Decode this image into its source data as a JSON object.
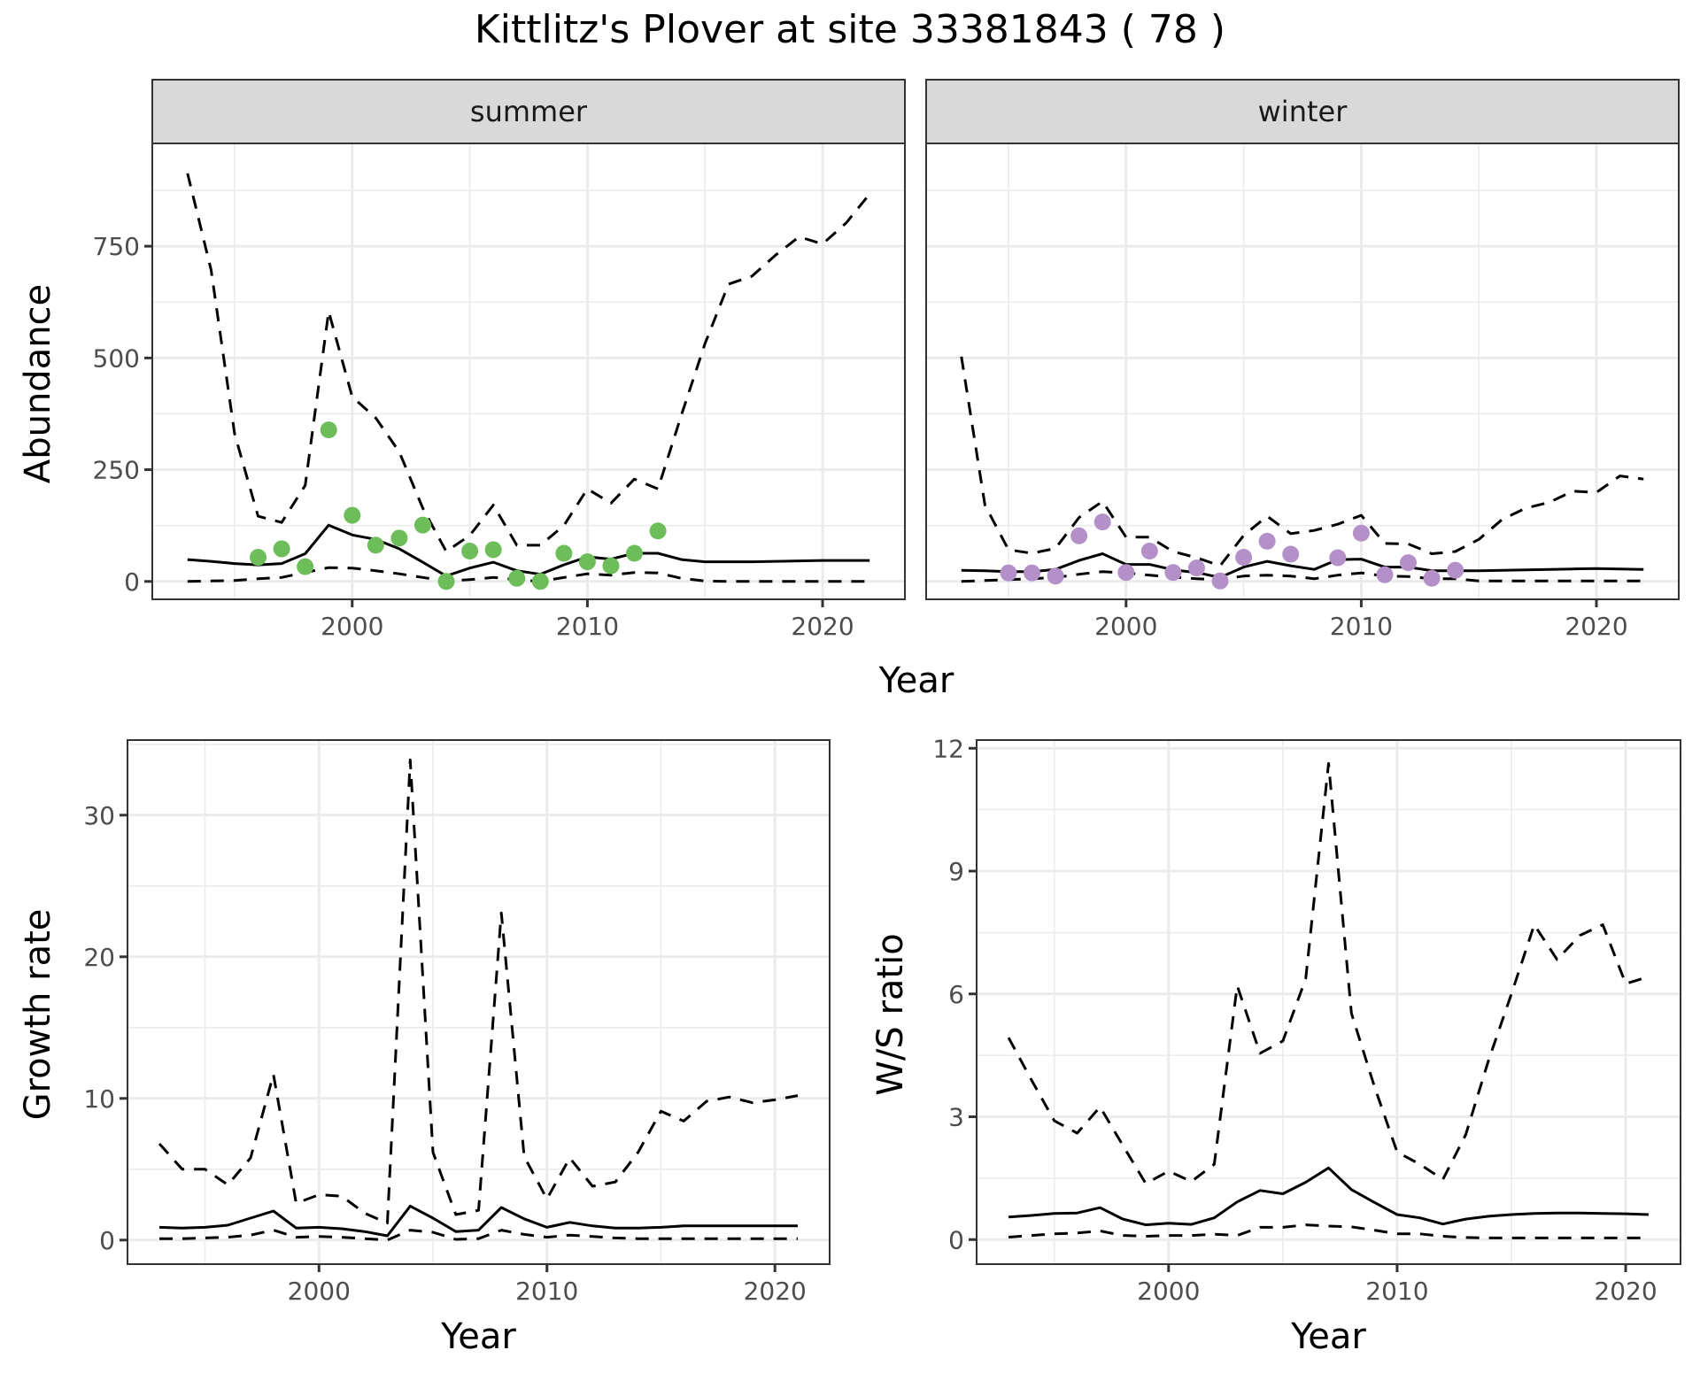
{
  "figure": {
    "title": "Kittlitz's Plover at site 33381843 ( 78 )"
  },
  "colors": {
    "summer_points": "#6dbe5b",
    "winter_points": "#b490c8",
    "line": "#000000",
    "strip_bg": "#d9d9d9",
    "grid": "#ebebeb",
    "panel_border": "#333333"
  },
  "chart_data": [
    {
      "type": "line",
      "panel": "summer",
      "strip_label": "summer",
      "xlabel": "Year",
      "ylabel": "Abundance",
      "xlim": [
        1991.5,
        2023.5
      ],
      "ylim": [
        -40,
        980
      ],
      "xticks": [
        2000,
        2010,
        2020
      ],
      "yticks": [
        0,
        250,
        500,
        750
      ],
      "grid": true,
      "observed_points": {
        "x": [
          1996,
          1997,
          1998,
          1999,
          2000,
          2001,
          2002,
          2003,
          2004,
          2005,
          2006,
          2007,
          2008,
          2009,
          2010,
          2011,
          2012,
          2013
        ],
        "y": [
          54,
          73,
          33,
          339,
          148,
          81,
          97,
          126,
          0,
          68,
          71,
          7,
          0,
          63,
          44,
          35,
          63,
          113
        ]
      },
      "series": [
        {
          "name": "median",
          "style": "solid",
          "x": [
            1993,
            1994,
            1995,
            1996,
            1997,
            1998,
            1999,
            2000,
            2001,
            2002,
            2003,
            2004,
            2005,
            2006,
            2007,
            2008,
            2009,
            2010,
            2011,
            2012,
            2013,
            2014,
            2015,
            2016,
            2017,
            2018,
            2019,
            2020,
            2021,
            2022
          ],
          "y": [
            49,
            45,
            40,
            37,
            40,
            62,
            126,
            104,
            94,
            73,
            43,
            12,
            30,
            43,
            24,
            16,
            37,
            55,
            50,
            63,
            63,
            49,
            44,
            44,
            44,
            45,
            46,
            47,
            47,
            47
          ]
        },
        {
          "name": "upper",
          "style": "dashed",
          "x": [
            1993,
            1994,
            1995,
            1996,
            1997,
            1998,
            1999,
            2000,
            2001,
            2002,
            2003,
            2004,
            2005,
            2006,
            2007,
            2008,
            2009,
            2010,
            2011,
            2012,
            2013,
            2014,
            2015,
            2016,
            2017,
            2018,
            2019,
            2020,
            2021,
            2022
          ],
          "y": [
            913,
            697,
            330,
            146,
            132,
            215,
            604,
            413,
            366,
            290,
            164,
            67,
            103,
            171,
            81,
            81,
            125,
            207,
            175,
            229,
            207,
            373,
            532,
            665,
            683,
            730,
            771,
            755,
            802,
            867
          ]
        },
        {
          "name": "lower",
          "style": "dashed",
          "x": [
            1993,
            1994,
            1995,
            1996,
            1997,
            1998,
            1999,
            2000,
            2001,
            2002,
            2003,
            2004,
            2005,
            2006,
            2007,
            2008,
            2009,
            2010,
            2011,
            2012,
            2013,
            2014,
            2015,
            2016,
            2017,
            2018,
            2019,
            2020,
            2021,
            2022
          ],
          "y": [
            0,
            1,
            2,
            6,
            9,
            20,
            31,
            30,
            24,
            17,
            9,
            1,
            4,
            9,
            4,
            0,
            9,
            17,
            14,
            20,
            19,
            7,
            1,
            0,
            0,
            0,
            0,
            0,
            0,
            0
          ]
        }
      ]
    },
    {
      "type": "line",
      "panel": "winter",
      "strip_label": "winter",
      "xlabel": "Year",
      "ylabel": "Abundance",
      "xlim": [
        1991.5,
        2023.5
      ],
      "ylim": [
        -40,
        980
      ],
      "xticks": [
        2000,
        2010,
        2020
      ],
      "yticks": [
        0,
        250,
        500,
        750
      ],
      "grid": true,
      "observed_points": {
        "x": [
          1995,
          1996,
          1997,
          1998,
          1999,
          2000,
          2001,
          2002,
          2003,
          2004,
          2005,
          2006,
          2007,
          2009,
          2010,
          2011,
          2012,
          2013,
          2014
        ],
        "y": [
          19,
          19,
          12,
          102,
          133,
          20,
          68,
          20,
          30,
          1,
          54,
          90,
          61,
          53,
          108,
          15,
          42,
          7,
          25
        ]
      },
      "series": [
        {
          "name": "median",
          "style": "solid",
          "x": [
            1993,
            1994,
            1995,
            1996,
            1997,
            1998,
            1999,
            2000,
            2001,
            2002,
            2003,
            2004,
            2005,
            2006,
            2007,
            2008,
            2009,
            2010,
            2011,
            2012,
            2013,
            2014,
            2015,
            2016,
            2017,
            2018,
            2019,
            2020,
            2021,
            2022
          ],
          "y": [
            25,
            24,
            22,
            22,
            27,
            47,
            62,
            38,
            38,
            26,
            20,
            9,
            32,
            45,
            35,
            27,
            49,
            50,
            32,
            32,
            24,
            24,
            24,
            25,
            26,
            27,
            28,
            29,
            28,
            27
          ]
        },
        {
          "name": "upper",
          "style": "dashed",
          "x": [
            1993,
            1994,
            1995,
            1996,
            1997,
            1998,
            1999,
            2000,
            2001,
            2002,
            2003,
            2004,
            2005,
            2006,
            2007,
            2008,
            2009,
            2010,
            2011,
            2012,
            2013,
            2014,
            2015,
            2016,
            2017,
            2018,
            2019,
            2020,
            2021,
            2022
          ],
          "y": [
            503,
            171,
            71,
            63,
            74,
            143,
            179,
            99,
            99,
            67,
            53,
            35,
            103,
            146,
            107,
            114,
            128,
            148,
            85,
            84,
            62,
            67,
            94,
            139,
            164,
            177,
            202,
            199,
            236,
            229
          ]
        },
        {
          "name": "lower",
          "style": "dashed",
          "x": [
            1993,
            1994,
            1995,
            1996,
            1997,
            1998,
            1999,
            2000,
            2001,
            2002,
            2003,
            2004,
            2005,
            2006,
            2007,
            2008,
            2009,
            2010,
            2011,
            2012,
            2013,
            2014,
            2015,
            2016,
            2017,
            2018,
            2019,
            2020,
            2021,
            2022
          ],
          "y": [
            0,
            2,
            4,
            6,
            9,
            16,
            22,
            19,
            14,
            10,
            6,
            4,
            12,
            14,
            12,
            6,
            14,
            19,
            12,
            11,
            6,
            6,
            1,
            1,
            1,
            1,
            1,
            1,
            1,
            1
          ]
        }
      ]
    },
    {
      "type": "line",
      "panel": "growth",
      "xlabel": "Year",
      "ylabel": "Growth rate",
      "xlim": [
        1991.6,
        2022.4
      ],
      "ylim": [
        -1.7,
        35.3
      ],
      "xticks": [
        2000,
        2010,
        2020
      ],
      "yticks": [
        0,
        10,
        20,
        30
      ],
      "grid": true,
      "series": [
        {
          "name": "median",
          "style": "solid",
          "x": [
            1993,
            1994,
            1995,
            1996,
            1997,
            1998,
            1999,
            2000,
            2001,
            2002,
            2003,
            2004,
            2005,
            2006,
            2007,
            2008,
            2009,
            2010,
            2011,
            2012,
            2013,
            2014,
            2015,
            2016,
            2017,
            2018,
            2019,
            2020,
            2021
          ],
          "y": [
            0.9,
            0.85,
            0.9,
            1.05,
            1.55,
            2.05,
            0.85,
            0.9,
            0.8,
            0.6,
            0.3,
            2.4,
            1.55,
            0.6,
            0.7,
            2.3,
            1.5,
            0.9,
            1.25,
            1.0,
            0.85,
            0.85,
            0.9,
            1.0,
            1.0,
            1.0,
            1.0,
            1.0,
            1.0
          ]
        },
        {
          "name": "upper",
          "style": "dashed",
          "x": [
            1993,
            1994,
            1995,
            1996,
            1997,
            1998,
            1999,
            2000,
            2001,
            2002,
            2003,
            2004,
            2005,
            2006,
            2007,
            2008,
            2009,
            2010,
            2011,
            2012,
            2013,
            2014,
            2015,
            2016,
            2017,
            2018,
            2019,
            2020,
            2021
          ],
          "y": [
            6.8,
            5.0,
            5.0,
            3.9,
            5.8,
            11.7,
            2.6,
            3.2,
            3.1,
            1.9,
            1.2,
            33.9,
            6.2,
            1.8,
            2.1,
            23.1,
            5.9,
            2.9,
            5.8,
            3.8,
            4.1,
            6.2,
            9.1,
            8.4,
            9.8,
            10.1,
            9.7,
            9.9,
            10.2
          ]
        },
        {
          "name": "lower",
          "style": "dashed",
          "x": [
            1993,
            1994,
            1995,
            1996,
            1997,
            1998,
            1999,
            2000,
            2001,
            2002,
            2003,
            2004,
            2005,
            2006,
            2007,
            2008,
            2009,
            2010,
            2011,
            2012,
            2013,
            2014,
            2015,
            2016,
            2017,
            2018,
            2019,
            2020,
            2021
          ],
          "y": [
            0.1,
            0.1,
            0.15,
            0.2,
            0.35,
            0.7,
            0.2,
            0.25,
            0.2,
            0.1,
            0.0,
            0.7,
            0.55,
            0.05,
            0.1,
            0.7,
            0.4,
            0.2,
            0.35,
            0.25,
            0.15,
            0.1,
            0.1,
            0.1,
            0.1,
            0.1,
            0.1,
            0.1,
            0.1
          ]
        }
      ]
    },
    {
      "type": "line",
      "panel": "ws_ratio",
      "xlabel": "Year",
      "ylabel": "W/S ratio",
      "xlim": [
        1991.6,
        2022.4
      ],
      "ylim": [
        -0.6,
        12.2
      ],
      "xticks": [
        2000,
        2010,
        2020
      ],
      "yticks": [
        0,
        3,
        6,
        9,
        12
      ],
      "grid": true,
      "series": [
        {
          "name": "median",
          "style": "solid",
          "x": [
            1993,
            1994,
            1995,
            1996,
            1997,
            1998,
            1999,
            2000,
            2001,
            2002,
            2003,
            2004,
            2005,
            2006,
            2007,
            2008,
            2009,
            2010,
            2011,
            2012,
            2013,
            2014,
            2015,
            2016,
            2017,
            2018,
            2019,
            2020,
            2021
          ],
          "y": [
            0.55,
            0.59,
            0.64,
            0.65,
            0.78,
            0.5,
            0.36,
            0.4,
            0.37,
            0.53,
            0.92,
            1.2,
            1.12,
            1.4,
            1.75,
            1.22,
            0.91,
            0.61,
            0.53,
            0.38,
            0.5,
            0.57,
            0.61,
            0.64,
            0.65,
            0.65,
            0.64,
            0.63,
            0.61
          ]
        },
        {
          "name": "upper",
          "style": "dashed",
          "x": [
            1993,
            1994,
            1995,
            1996,
            1997,
            1998,
            1999,
            2000,
            2001,
            2002,
            2003,
            2004,
            2005,
            2006,
            2007,
            2008,
            2009,
            2010,
            2011,
            2012,
            2013,
            2014,
            2015,
            2016,
            2017,
            2018,
            2019,
            2020,
            2021
          ],
          "y": [
            4.93,
            3.9,
            2.9,
            2.6,
            3.24,
            2.3,
            1.37,
            1.67,
            1.42,
            1.84,
            6.2,
            4.55,
            4.85,
            6.37,
            11.63,
            5.53,
            3.75,
            2.14,
            1.84,
            1.47,
            2.56,
            4.38,
            6.0,
            7.69,
            6.84,
            7.43,
            7.69,
            6.25,
            6.42
          ]
        },
        {
          "name": "lower",
          "style": "dashed",
          "x": [
            1993,
            1994,
            1995,
            1996,
            1997,
            1998,
            1999,
            2000,
            2001,
            2002,
            2003,
            2004,
            2005,
            2006,
            2007,
            2008,
            2009,
            2010,
            2011,
            2012,
            2013,
            2014,
            2015,
            2016,
            2017,
            2018,
            2019,
            2020,
            2021
          ],
          "y": [
            0.06,
            0.1,
            0.14,
            0.16,
            0.21,
            0.1,
            0.08,
            0.1,
            0.1,
            0.13,
            0.1,
            0.3,
            0.3,
            0.36,
            0.33,
            0.31,
            0.23,
            0.14,
            0.14,
            0.08,
            0.05,
            0.04,
            0.04,
            0.04,
            0.04,
            0.04,
            0.04,
            0.04,
            0.04
          ]
        }
      ]
    }
  ]
}
